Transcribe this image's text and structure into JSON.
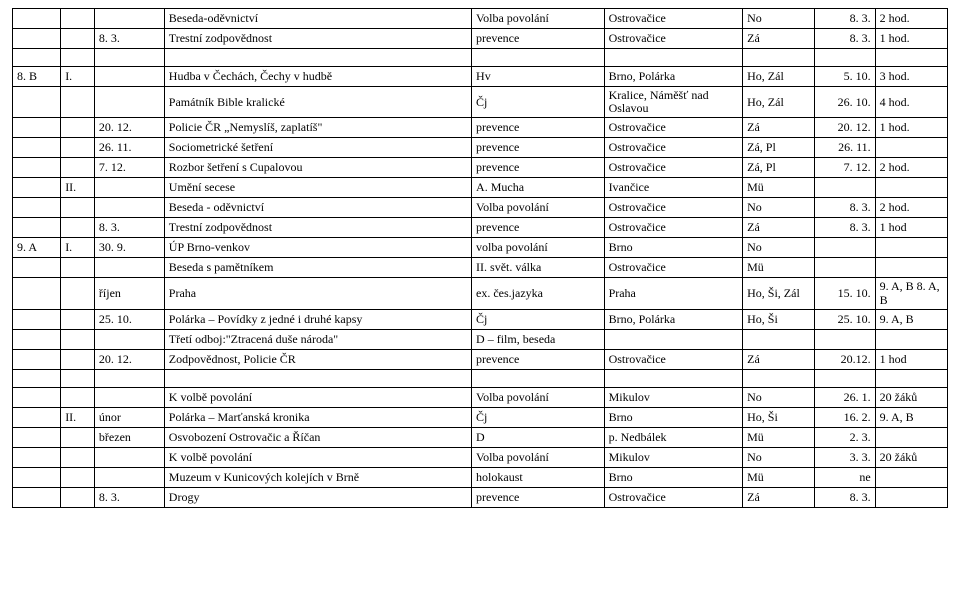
{
  "rows": [
    {
      "c0": "",
      "c1": "",
      "c2": "",
      "c3": "Beseda-oděvnictví",
      "c4": "Volba povolání",
      "c5": "Ostrovačice",
      "c6": "No",
      "c7": "8. 3.",
      "c8": "2 hod."
    },
    {
      "c0": "",
      "c1": "",
      "c2": "8. 3.",
      "c3": "Trestní zodpovědnost",
      "c4": "prevence",
      "c5": "Ostrovačice",
      "c6": "Zá",
      "c7": "8. 3.",
      "c8": "1 hod."
    },
    {
      "c0": "",
      "c1": "",
      "c2": "",
      "c3": "",
      "c4": "",
      "c5": "",
      "c6": "",
      "c7": "",
      "c8": ""
    },
    {
      "c0": "8. B",
      "c1": "I.",
      "c2": "",
      "c3": "Hudba v Čechách, Čechy v hudbě",
      "c4": "Hv",
      "c5": "Brno, Polárka",
      "c6": "Ho, Zál",
      "c7": "5. 10.",
      "c8": "3 hod."
    },
    {
      "c0": "",
      "c1": "",
      "c2": "",
      "c3": "Památník Bible kralické",
      "c4": "Čj",
      "c5": "Kralice, Náměšť nad Oslavou",
      "c5wrap": true,
      "c6": "Ho, Zál",
      "c7": "26. 10.",
      "c8": "4 hod."
    },
    {
      "c0": "",
      "c1": "",
      "c2": "20. 12.",
      "c3": "Policie ČR „Nemyslíš, zaplatíš\"",
      "c4": "prevence",
      "c5": "Ostrovačice",
      "c6": "Zá",
      "c7": "20. 12.",
      "c8": "1 hod."
    },
    {
      "c0": "",
      "c1": "",
      "c2": "26. 11.",
      "c3": "Sociometrické šetření",
      "c4": "prevence",
      "c5": "Ostrovačice",
      "c6": "Zá, Pl",
      "c7": "26. 11.",
      "c8": ""
    },
    {
      "c0": "",
      "c1": "",
      "c2": "7. 12.",
      "c3": "Rozbor šetření s Cupalovou",
      "c4": "prevence",
      "c5": "Ostrovačice",
      "c6": "Zá, Pl",
      "c7": "7. 12.",
      "c8": "2 hod."
    },
    {
      "c0": "",
      "c1": "II.",
      "c2": "",
      "c3": "Umění secese",
      "c4": "A. Mucha",
      "c5": "Ivančice",
      "c6": "Mü",
      "c7": "",
      "c8": ""
    },
    {
      "c0": "",
      "c1": "",
      "c2": "",
      "c3": "Beseda - oděvnictví",
      "c4": "Volba povolání",
      "c5": "Ostrovačice",
      "c6": "No",
      "c7": "8. 3.",
      "c8": "2 hod."
    },
    {
      "c0": "",
      "c1": "",
      "c2": "8. 3.",
      "c3": "Trestní zodpovědnost",
      "c4": "prevence",
      "c5": "Ostrovačice",
      "c6": "Zá",
      "c7": "8. 3.",
      "c8": "1 hod"
    },
    {
      "c0": "9. A",
      "c1": "I.",
      "c2": "30. 9.",
      "c3": "ÚP Brno-venkov",
      "c4": "volba povolání",
      "c5": "Brno",
      "c6": "No",
      "c7": "",
      "c8": ""
    },
    {
      "c0": "",
      "c1": "",
      "c2": "",
      "c3": "Beseda s pamětníkem",
      "c4": "II. svět. válka",
      "c5": "Ostrovačice",
      "c6": "Mü",
      "c7": "",
      "c8": ""
    },
    {
      "c0": "",
      "c1": "",
      "c2": "říjen",
      "c3": "Praha",
      "c4": "ex. čes.jazyka",
      "c5": "Praha",
      "c6": "Ho, Ši, Zál",
      "c6wrap": true,
      "c7": "15. 10.",
      "c8": "9. A, B 8. A, B",
      "c8wrap": true
    },
    {
      "c0": "",
      "c1": "",
      "c2": "25. 10.",
      "c3": "Polárka – Povídky z jedné i druhé kapsy",
      "c4": "Čj",
      "c5": "Brno, Polárka",
      "c6": "Ho, Ši",
      "c7": "25. 10.",
      "c8": "9. A, B"
    },
    {
      "c0": "",
      "c1": "",
      "c2": "",
      "c3": "Třetí odboj:\"Ztracená duše národa\"",
      "c4": "D – film, beseda",
      "c5": "",
      "c6": "",
      "c7": "",
      "c8": ""
    },
    {
      "c0": "",
      "c1": "",
      "c2": "20. 12.",
      "c3": "Zodpovědnost, Policie ČR",
      "c4": "prevence",
      "c5": "Ostrovačice",
      "c6": "Zá",
      "c7": "20.12.",
      "c8": "1 hod",
      "c8wrap": true
    },
    {
      "c0": "",
      "c1": "",
      "c2": "",
      "c3": "",
      "c4": "",
      "c5": "",
      "c6": "",
      "c7": "",
      "c8": ""
    },
    {
      "c0": "",
      "c1": "",
      "c2": "",
      "c3": "K volbě povolání",
      "c4": "Volba povolání",
      "c5": "Mikulov",
      "c6": "No",
      "c7": "26. 1.",
      "c8": "20 žáků"
    },
    {
      "c0": "",
      "c1": "II.",
      "c2": "únor",
      "c3": "Polárka – Marťanská kronika",
      "c4": "Čj",
      "c5": "Brno",
      "c6": "Ho, Ši",
      "c7": "16. 2.",
      "c8": "9. A, B"
    },
    {
      "c0": "",
      "c1": "",
      "c2": "březen",
      "c3": "Osvobození Ostrovačic a Říčan",
      "c4": "D",
      "c5": "p. Nedbálek",
      "c6": "Mü",
      "c7": "2. 3.",
      "c8": ""
    },
    {
      "c0": "",
      "c1": "",
      "c2": "",
      "c3": "K volbě povolání",
      "c4": "Volba povolání",
      "c5": "Mikulov",
      "c6": "No",
      "c7": "3. 3.",
      "c8": "20 žáků"
    },
    {
      "c0": "",
      "c1": "",
      "c2": "",
      "c3": "Muzeum v Kunicových kolejích v Brně",
      "c3wrap": true,
      "c4": "holokaust",
      "c5": "Brno",
      "c6": "Mü",
      "c7": "ne",
      "c8": ""
    },
    {
      "c0": "",
      "c1": "",
      "c2": "8. 3.",
      "c3": "Drogy",
      "c4": "prevence",
      "c5": "Ostrovačice",
      "c6": "Zá",
      "c7": "8. 3.",
      "c8": ""
    }
  ]
}
